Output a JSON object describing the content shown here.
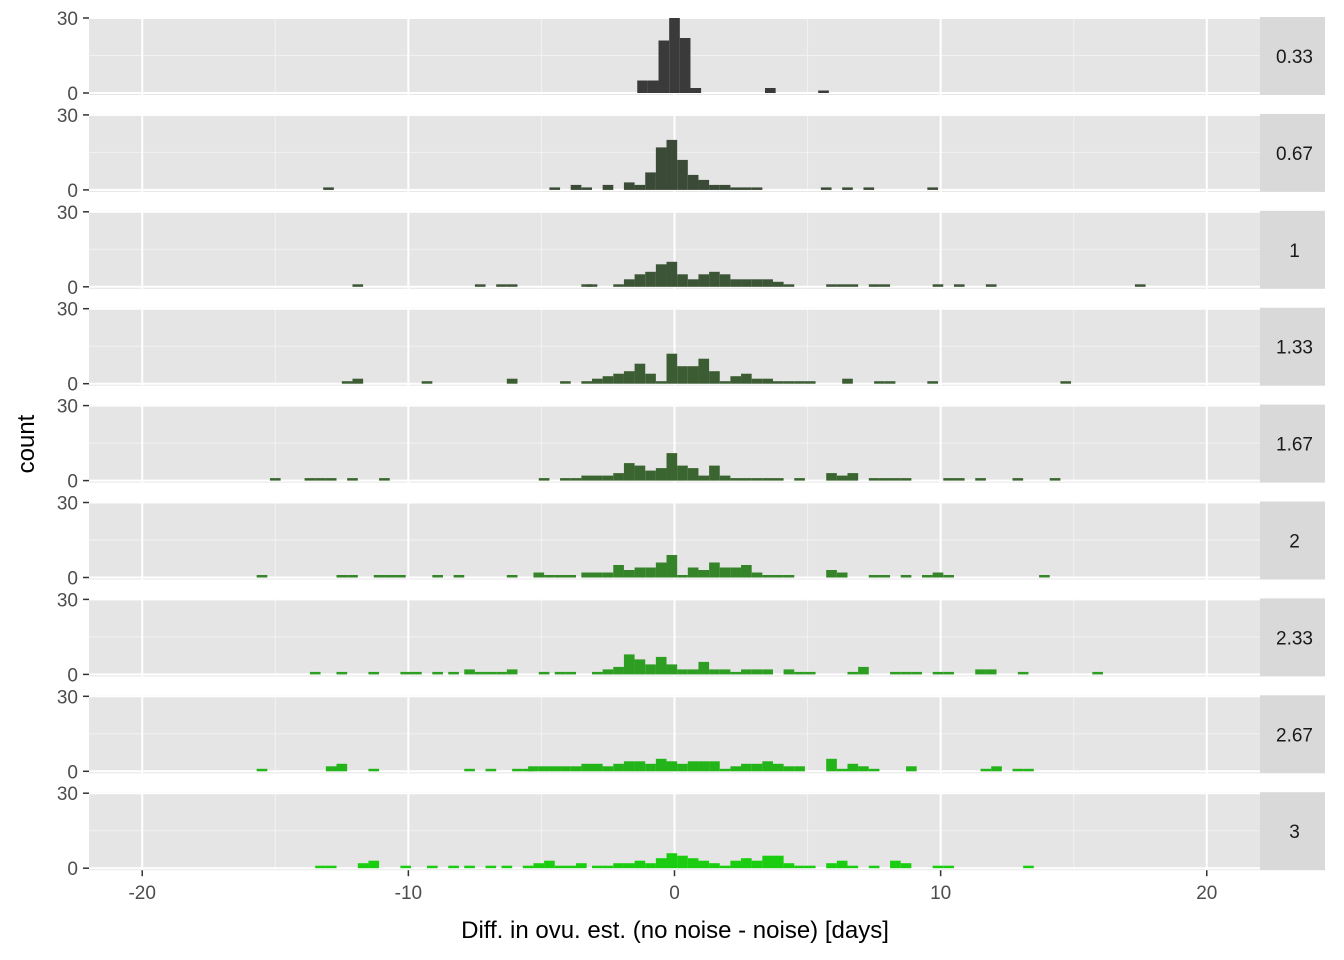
{
  "chart_data": {
    "type": "histogram",
    "facet_layout": "rows",
    "xlabel": "Diff. in ovu. est. (no noise - noise) [days]",
    "ylabel": "count",
    "xlim": [
      -22,
      22
    ],
    "ylim": [
      0,
      30
    ],
    "x_ticks": [
      -20,
      -10,
      0,
      10,
      20
    ],
    "x_tick_labels": [
      "-20",
      "-10",
      "0",
      "10",
      "20"
    ],
    "y_ticks": [
      0,
      30
    ],
    "y_tick_labels": [
      "0",
      "30"
    ],
    "bin_width": 0.4,
    "grid": true,
    "panels": [
      {
        "label": "0.33",
        "color": "#3a3a3a",
        "bins": [
          [
            -1.2,
            5
          ],
          [
            -0.8,
            5
          ],
          [
            -0.4,
            21
          ],
          [
            0,
            30
          ],
          [
            0.4,
            22
          ],
          [
            0.8,
            2
          ],
          [
            3.6,
            2
          ],
          [
            5.6,
            1
          ]
        ]
      },
      {
        "label": "0.67",
        "color": "#3b4a37",
        "bins": [
          [
            -13,
            1
          ],
          [
            -4.5,
            1
          ],
          [
            -3.7,
            2
          ],
          [
            -3.3,
            1
          ],
          [
            -2.5,
            2
          ],
          [
            -1.7,
            3
          ],
          [
            -1.3,
            2
          ],
          [
            -0.9,
            7
          ],
          [
            -0.5,
            17
          ],
          [
            -0.1,
            20
          ],
          [
            0.3,
            12
          ],
          [
            0.7,
            6
          ],
          [
            1.1,
            4
          ],
          [
            1.5,
            2
          ],
          [
            1.9,
            2
          ],
          [
            2.3,
            1
          ],
          [
            2.7,
            1
          ],
          [
            3.1,
            1
          ],
          [
            5.7,
            1
          ],
          [
            6.5,
            1
          ],
          [
            7.3,
            1
          ],
          [
            9.7,
            1
          ]
        ]
      },
      {
        "label": "1",
        "color": "#3d5537",
        "bins": [
          [
            -11.9,
            1
          ],
          [
            -7.3,
            1
          ],
          [
            -6.5,
            1
          ],
          [
            -6.1,
            1
          ],
          [
            -3.3,
            1
          ],
          [
            -3.1,
            1
          ],
          [
            -2.1,
            1
          ],
          [
            -1.7,
            3
          ],
          [
            -1.3,
            5
          ],
          [
            -0.9,
            6
          ],
          [
            -0.5,
            9
          ],
          [
            -0.1,
            10
          ],
          [
            0.3,
            5
          ],
          [
            0.7,
            3
          ],
          [
            1.1,
            5
          ],
          [
            1.5,
            6
          ],
          [
            1.9,
            5
          ],
          [
            2.3,
            3
          ],
          [
            2.7,
            3
          ],
          [
            3.1,
            3
          ],
          [
            3.5,
            3
          ],
          [
            3.9,
            2
          ],
          [
            4.3,
            1
          ],
          [
            5.9,
            1
          ],
          [
            6.3,
            1
          ],
          [
            6.7,
            1
          ],
          [
            7.5,
            1
          ],
          [
            7.9,
            1
          ],
          [
            9.9,
            1
          ],
          [
            10.7,
            1
          ],
          [
            11.9,
            1
          ],
          [
            17.5,
            1
          ]
        ]
      },
      {
        "label": "1.33",
        "color": "#3c5d33",
        "bins": [
          [
            -12.3,
            1
          ],
          [
            -11.9,
            2
          ],
          [
            -9.3,
            1
          ],
          [
            -6.1,
            2
          ],
          [
            -4.1,
            1
          ],
          [
            -3.3,
            1
          ],
          [
            -2.9,
            2
          ],
          [
            -2.5,
            3
          ],
          [
            -2.1,
            4
          ],
          [
            -1.7,
            5
          ],
          [
            -1.3,
            8
          ],
          [
            -0.9,
            4
          ],
          [
            -0.5,
            1
          ],
          [
            -0.1,
            12
          ],
          [
            0.3,
            7
          ],
          [
            0.7,
            7
          ],
          [
            1.1,
            10
          ],
          [
            1.5,
            5
          ],
          [
            1.9,
            1
          ],
          [
            2.3,
            3
          ],
          [
            2.7,
            4
          ],
          [
            3.1,
            2
          ],
          [
            3.5,
            2
          ],
          [
            3.9,
            1
          ],
          [
            4.3,
            1
          ],
          [
            4.7,
            1
          ],
          [
            5.1,
            1
          ],
          [
            6.5,
            2
          ],
          [
            7.7,
            1
          ],
          [
            8.1,
            1
          ],
          [
            9.7,
            1
          ],
          [
            14.7,
            1
          ]
        ]
      },
      {
        "label": "1.67",
        "color": "#3b6530",
        "bins": [
          [
            -15,
            1
          ],
          [
            -13.7,
            1
          ],
          [
            -13.3,
            1
          ],
          [
            -12.9,
            1
          ],
          [
            -12.1,
            1
          ],
          [
            -10.9,
            1
          ],
          [
            -4.9,
            1
          ],
          [
            -4.1,
            1
          ],
          [
            -3.7,
            1
          ],
          [
            -3.3,
            2
          ],
          [
            -2.9,
            2
          ],
          [
            -2.5,
            2
          ],
          [
            -2.1,
            3
          ],
          [
            -1.7,
            7
          ],
          [
            -1.3,
            6
          ],
          [
            -0.9,
            4
          ],
          [
            -0.5,
            5
          ],
          [
            -0.1,
            11
          ],
          [
            0.3,
            6
          ],
          [
            0.7,
            5
          ],
          [
            1.1,
            2
          ],
          [
            1.5,
            6
          ],
          [
            1.9,
            2
          ],
          [
            2.3,
            1
          ],
          [
            2.7,
            1
          ],
          [
            3.1,
            1
          ],
          [
            3.5,
            1
          ],
          [
            3.9,
            1
          ],
          [
            4.7,
            1
          ],
          [
            5.9,
            3
          ],
          [
            6.3,
            2
          ],
          [
            6.7,
            3
          ],
          [
            7.5,
            1
          ],
          [
            7.9,
            1
          ],
          [
            8.3,
            1
          ],
          [
            8.7,
            1
          ],
          [
            10.3,
            1
          ],
          [
            10.7,
            1
          ],
          [
            11.5,
            1
          ],
          [
            12.9,
            1
          ],
          [
            14.3,
            1
          ]
        ]
      },
      {
        "label": "2",
        "color": "#368429",
        "bins": [
          [
            -15.5,
            1
          ],
          [
            -12.5,
            1
          ],
          [
            -12.1,
            1
          ],
          [
            -11.1,
            1
          ],
          [
            -10.7,
            1
          ],
          [
            -10.3,
            1
          ],
          [
            -8.9,
            1
          ],
          [
            -8.1,
            1
          ],
          [
            -6.1,
            1
          ],
          [
            -5.1,
            2
          ],
          [
            -4.7,
            1
          ],
          [
            -4.3,
            1
          ],
          [
            -3.9,
            1
          ],
          [
            -3.3,
            2
          ],
          [
            -2.9,
            2
          ],
          [
            -2.5,
            2
          ],
          [
            -2.1,
            5
          ],
          [
            -1.7,
            3
          ],
          [
            -1.3,
            4
          ],
          [
            -0.9,
            4
          ],
          [
            -0.5,
            6
          ],
          [
            -0.1,
            9
          ],
          [
            0.3,
            1
          ],
          [
            0.7,
            4
          ],
          [
            1.1,
            3
          ],
          [
            1.5,
            6
          ],
          [
            1.9,
            4
          ],
          [
            2.3,
            4
          ],
          [
            2.7,
            5
          ],
          [
            3.1,
            2
          ],
          [
            3.5,
            1
          ],
          [
            3.9,
            1
          ],
          [
            4.3,
            1
          ],
          [
            5.9,
            3
          ],
          [
            6.3,
            2
          ],
          [
            7.5,
            1
          ],
          [
            7.9,
            1
          ],
          [
            8.7,
            1
          ],
          [
            9.5,
            1
          ],
          [
            9.9,
            2
          ],
          [
            10.3,
            1
          ],
          [
            13.9,
            1
          ]
        ]
      },
      {
        "label": "2.33",
        "color": "#2d9e22",
        "bins": [
          [
            -13.5,
            1
          ],
          [
            -12.5,
            1
          ],
          [
            -11.3,
            1
          ],
          [
            -10.1,
            1
          ],
          [
            -9.7,
            1
          ],
          [
            -8.9,
            1
          ],
          [
            -8.3,
            1
          ],
          [
            -7.7,
            2
          ],
          [
            -7.3,
            1
          ],
          [
            -6.9,
            1
          ],
          [
            -6.5,
            1
          ],
          [
            -6.1,
            2
          ],
          [
            -4.9,
            1
          ],
          [
            -4.3,
            1
          ],
          [
            -3.9,
            1
          ],
          [
            -2.9,
            1
          ],
          [
            -2.5,
            2
          ],
          [
            -2.1,
            3
          ],
          [
            -1.7,
            8
          ],
          [
            -1.3,
            6
          ],
          [
            -0.9,
            4
          ],
          [
            -0.5,
            7
          ],
          [
            -0.1,
            4
          ],
          [
            0.3,
            2
          ],
          [
            0.7,
            2
          ],
          [
            1.1,
            5
          ],
          [
            1.5,
            2
          ],
          [
            1.9,
            2
          ],
          [
            2.3,
            1
          ],
          [
            2.7,
            2
          ],
          [
            3.1,
            2
          ],
          [
            3.5,
            2
          ],
          [
            4.3,
            2
          ],
          [
            4.7,
            1
          ],
          [
            5.1,
            1
          ],
          [
            6.7,
            1
          ],
          [
            7.1,
            3
          ],
          [
            8.3,
            1
          ],
          [
            8.7,
            1
          ],
          [
            9.1,
            1
          ],
          [
            9.9,
            1
          ],
          [
            10.3,
            1
          ],
          [
            11.5,
            2
          ],
          [
            11.9,
            2
          ],
          [
            13.1,
            1
          ],
          [
            15.9,
            1
          ]
        ]
      },
      {
        "label": "2.67",
        "color": "#22b418",
        "bins": [
          [
            -15.5,
            1
          ],
          [
            -12.9,
            2
          ],
          [
            -12.5,
            3
          ],
          [
            -11.3,
            1
          ],
          [
            -7.7,
            1
          ],
          [
            -6.9,
            1
          ],
          [
            -5.9,
            1
          ],
          [
            -5.5,
            1
          ],
          [
            -5.3,
            2
          ],
          [
            -4.9,
            2
          ],
          [
            -4.5,
            2
          ],
          [
            -4.1,
            2
          ],
          [
            -3.7,
            2
          ],
          [
            -3.3,
            3
          ],
          [
            -2.9,
            3
          ],
          [
            -2.5,
            2
          ],
          [
            -2.1,
            3
          ],
          [
            -1.7,
            4
          ],
          [
            -1.3,
            4
          ],
          [
            -0.9,
            3
          ],
          [
            -0.5,
            5
          ],
          [
            -0.1,
            4
          ],
          [
            0.3,
            3
          ],
          [
            0.7,
            4
          ],
          [
            1.1,
            4
          ],
          [
            1.5,
            4
          ],
          [
            1.9,
            1
          ],
          [
            2.3,
            2
          ],
          [
            2.7,
            3
          ],
          [
            3.1,
            3
          ],
          [
            3.5,
            4
          ],
          [
            3.9,
            3
          ],
          [
            4.3,
            2
          ],
          [
            4.7,
            2
          ],
          [
            5.9,
            5
          ],
          [
            6.3,
            1
          ],
          [
            6.7,
            3
          ],
          [
            7.1,
            2
          ],
          [
            7.5,
            1
          ],
          [
            8.9,
            2
          ],
          [
            11.7,
            1
          ],
          [
            12.1,
            2
          ],
          [
            12.9,
            1
          ],
          [
            13.3,
            1
          ]
        ]
      },
      {
        "label": "3",
        "color": "#1acd10",
        "bins": [
          [
            -13.3,
            1
          ],
          [
            -12.9,
            1
          ],
          [
            -11.7,
            2
          ],
          [
            -11.3,
            3
          ],
          [
            -10.1,
            1
          ],
          [
            -9.1,
            1
          ],
          [
            -8.3,
            1
          ],
          [
            -7.7,
            1
          ],
          [
            -6.9,
            1
          ],
          [
            -6.3,
            1
          ],
          [
            -5.5,
            1
          ],
          [
            -5.1,
            2
          ],
          [
            -4.7,
            3
          ],
          [
            -4.3,
            1
          ],
          [
            -3.9,
            1
          ],
          [
            -3.5,
            2
          ],
          [
            -2.9,
            1
          ],
          [
            -2.5,
            1
          ],
          [
            -2.1,
            2
          ],
          [
            -1.7,
            2
          ],
          [
            -1.3,
            3
          ],
          [
            -0.9,
            2
          ],
          [
            -0.5,
            4
          ],
          [
            -0.1,
            6
          ],
          [
            0.3,
            5
          ],
          [
            0.7,
            4
          ],
          [
            1.1,
            3
          ],
          [
            1.5,
            2
          ],
          [
            1.9,
            1
          ],
          [
            2.3,
            3
          ],
          [
            2.7,
            4
          ],
          [
            3.1,
            3
          ],
          [
            3.5,
            5
          ],
          [
            3.9,
            5
          ],
          [
            4.3,
            2
          ],
          [
            4.7,
            1
          ],
          [
            5.1,
            1
          ],
          [
            5.9,
            2
          ],
          [
            6.3,
            3
          ],
          [
            6.7,
            1
          ],
          [
            7.5,
            1
          ],
          [
            8.3,
            3
          ],
          [
            8.7,
            2
          ],
          [
            9.9,
            1
          ],
          [
            10.3,
            1
          ],
          [
            13.3,
            1
          ]
        ]
      }
    ]
  }
}
